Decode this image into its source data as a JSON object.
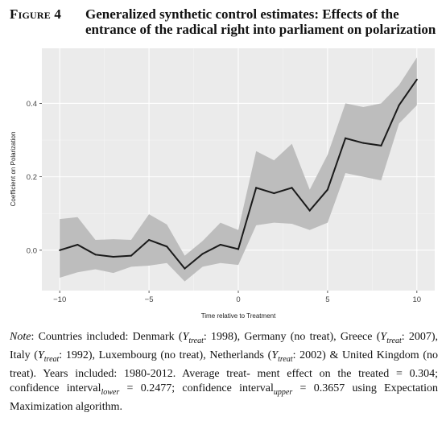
{
  "figure": {
    "label": "Figure 4",
    "title": "Generalized synthetic control estimates: Effects of the entrance of the radical right into parliament on polarization"
  },
  "chart_data": {
    "type": "line",
    "xlabel": "Time relative to Treatment",
    "ylabel": "Coefficient on Polarization",
    "xlim": [
      -11,
      11
    ],
    "ylim": [
      -0.11,
      0.55
    ],
    "xticks": [
      -10,
      -5,
      0,
      5,
      10
    ],
    "xtick_labels": [
      "−10",
      "−5",
      "0",
      "5",
      "10"
    ],
    "yticks": [
      0.0,
      0.2,
      0.4
    ],
    "ytick_labels": [
      "0.0",
      "0.2",
      "0.4"
    ],
    "grid": true,
    "x": [
      -10,
      -9,
      -8,
      -7,
      -6,
      -5,
      -4,
      -3,
      -2,
      -1,
      0,
      1,
      2,
      3,
      4,
      5,
      6,
      7,
      8,
      9,
      10
    ],
    "estimate": [
      0.0,
      0.015,
      -0.012,
      -0.018,
      -0.015,
      0.028,
      0.01,
      -0.05,
      -0.01,
      0.015,
      0.003,
      0.17,
      0.155,
      0.17,
      0.108,
      0.165,
      0.305,
      0.292,
      0.285,
      0.395,
      0.465
    ],
    "ci_upper": [
      0.085,
      0.09,
      0.028,
      0.03,
      0.028,
      0.098,
      0.07,
      -0.015,
      0.025,
      0.075,
      0.055,
      0.27,
      0.245,
      0.29,
      0.165,
      0.26,
      0.4,
      0.39,
      0.4,
      0.45,
      0.525
    ],
    "ci_lower": [
      -0.075,
      -0.06,
      -0.052,
      -0.062,
      -0.045,
      -0.042,
      -0.035,
      -0.085,
      -0.045,
      -0.035,
      -0.04,
      0.068,
      0.075,
      0.072,
      0.055,
      0.075,
      0.21,
      0.2,
      0.19,
      0.345,
      0.395
    ]
  },
  "note": {
    "line1": "Note: Countries included: Denmark (",
    "t1": "Y",
    "s1": "treat",
    "line1b": ": 1998), Germany (no treat), Greece",
    "line2a": "(",
    "t2": "Y",
    "s2": "treat",
    "line2b": ": 2007), Italy (",
    "t3": "Y",
    "s3": "treat",
    "line2c": ": 1992), Luxembourg (no treat), Netherlands (",
    "t4": "Y",
    "s4": "treat",
    "line2d": ":",
    "line3": "2002) & United Kingdom (no treat). Years included: 1980-2012. Average treat-",
    "line4": "ment effect on the treated = 0.304; confidence interval",
    "s5": "lower",
    "line4b": " = 0.2477; confidence",
    "line5": "interval",
    "s6": "upper",
    "line5b": " = 0.3657 using Expectation Maximization algorithm."
  }
}
